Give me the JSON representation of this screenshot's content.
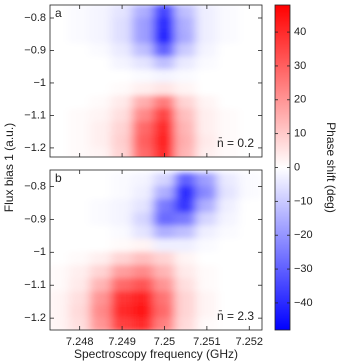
{
  "chart_data": [
    {
      "type": "heatmap",
      "label": "a",
      "annotation": "n̄ = 0.2",
      "ylabel": "Flux bias 1 (a.u.)",
      "xlim": [
        7.2473,
        7.2523
      ],
      "ylim": [
        -1.228,
        -0.76
      ],
      "xticks": [
        7.248,
        7.249,
        7.25,
        7.251,
        7.252
      ],
      "yticks": [
        {
          "value": -0.8,
          "label": "−0.8"
        },
        {
          "value": -0.9,
          "label": "−0.9"
        },
        {
          "value": -1,
          "label": "−1"
        },
        {
          "value": -1.1,
          "label": "−1.1"
        },
        {
          "value": -1.2,
          "label": "−1.2"
        }
      ],
      "x": [
        7.2475,
        7.248,
        7.2485,
        7.249,
        7.2495,
        7.25,
        7.2505,
        7.251,
        7.2515,
        7.252
      ],
      "y": [
        -0.78,
        -0.82,
        -0.86,
        -0.9,
        -0.94,
        -0.98,
        -1.02,
        -1.06,
        -1.1,
        -1.14,
        -1.18,
        -1.22
      ],
      "z": [
        [
          0,
          -1,
          -2,
          -5,
          -15,
          -35,
          -12,
          -3,
          -1,
          0
        ],
        [
          0,
          -1,
          -2,
          -6,
          -18,
          -40,
          -15,
          -3,
          -1,
          0
        ],
        [
          0,
          -1,
          -2,
          -6,
          -18,
          -42,
          -16,
          -3,
          -1,
          0
        ],
        [
          0,
          0,
          -1,
          -4,
          -12,
          -30,
          -10,
          -2,
          0,
          0
        ],
        [
          0,
          0,
          0,
          -2,
          -5,
          -12,
          -4,
          -1,
          0,
          0
        ],
        [
          0,
          0,
          0,
          0,
          -1,
          -2,
          -1,
          0,
          0,
          0
        ],
        [
          0,
          0,
          0,
          1,
          3,
          5,
          2,
          0,
          0,
          0
        ],
        [
          0,
          0,
          1,
          4,
          15,
          25,
          8,
          2,
          0,
          0
        ],
        [
          0,
          1,
          2,
          6,
          22,
          35,
          12,
          3,
          1,
          0
        ],
        [
          0,
          1,
          3,
          8,
          28,
          40,
          14,
          3,
          1,
          0
        ],
        [
          0,
          1,
          3,
          9,
          30,
          42,
          15,
          4,
          1,
          0
        ],
        [
          0,
          1,
          2,
          8,
          28,
          40,
          14,
          3,
          1,
          0
        ]
      ]
    },
    {
      "type": "heatmap",
      "label": "b",
      "annotation": "n̄ = 2.3",
      "xlabel": "Spectroscopy frequency (GHz)",
      "xlim": [
        7.2473,
        7.2523
      ],
      "ylim": [
        -1.236,
        -0.75
      ],
      "xticks": [
        7.248,
        7.249,
        7.25,
        7.251,
        7.252
      ],
      "yticks": [
        {
          "value": -0.8,
          "label": "−0.8"
        },
        {
          "value": -0.9,
          "label": "−0.9"
        },
        {
          "value": -1,
          "label": "−1"
        },
        {
          "value": -1.1,
          "label": "−1.1"
        },
        {
          "value": -1.2,
          "label": "−1.2"
        }
      ],
      "x": [
        7.2475,
        7.248,
        7.2485,
        7.249,
        7.2495,
        7.25,
        7.2505,
        7.251,
        7.2515,
        7.252
      ],
      "y": [
        -0.78,
        -0.82,
        -0.86,
        -0.9,
        -0.94,
        -0.98,
        -1.02,
        -1.06,
        -1.1,
        -1.14,
        -1.18,
        -1.22
      ],
      "z": [
        [
          0,
          0,
          0,
          -1,
          -2,
          -8,
          -30,
          -18,
          -4,
          -1
        ],
        [
          0,
          0,
          0,
          -1,
          -3,
          -15,
          -40,
          -22,
          -5,
          -1
        ],
        [
          0,
          0,
          -1,
          -2,
          -5,
          -25,
          -38,
          -15,
          -3,
          0
        ],
        [
          0,
          0,
          -1,
          -2,
          -8,
          -28,
          -25,
          -8,
          -2,
          0
        ],
        [
          0,
          0,
          0,
          -1,
          -5,
          -15,
          -12,
          -3,
          -1,
          0
        ],
        [
          0,
          0,
          0,
          1,
          2,
          -3,
          -3,
          -1,
          0,
          0
        ],
        [
          0,
          1,
          3,
          8,
          12,
          8,
          2,
          0,
          0,
          0
        ],
        [
          1,
          3,
          8,
          18,
          22,
          14,
          4,
          1,
          0,
          0
        ],
        [
          1,
          4,
          14,
          28,
          32,
          20,
          6,
          1,
          0,
          0
        ],
        [
          2,
          6,
          20,
          38,
          42,
          26,
          8,
          2,
          0,
          0
        ],
        [
          2,
          7,
          22,
          40,
          44,
          28,
          8,
          2,
          0,
          0
        ],
        [
          2,
          6,
          20,
          36,
          40,
          24,
          7,
          1,
          0,
          0
        ]
      ]
    }
  ],
  "colorbar": {
    "label": "Phase shift (deg)",
    "zlim": [
      -48,
      48
    ],
    "ticks": [
      {
        "value": -40,
        "label": "−40"
      },
      {
        "value": -30,
        "label": "−30"
      },
      {
        "value": -20,
        "label": "−20"
      },
      {
        "value": -10,
        "label": "−10"
      },
      0,
      10,
      20,
      30,
      40
    ],
    "colors": [
      "#0000ff",
      "#ffffff",
      "#ff0000"
    ]
  }
}
